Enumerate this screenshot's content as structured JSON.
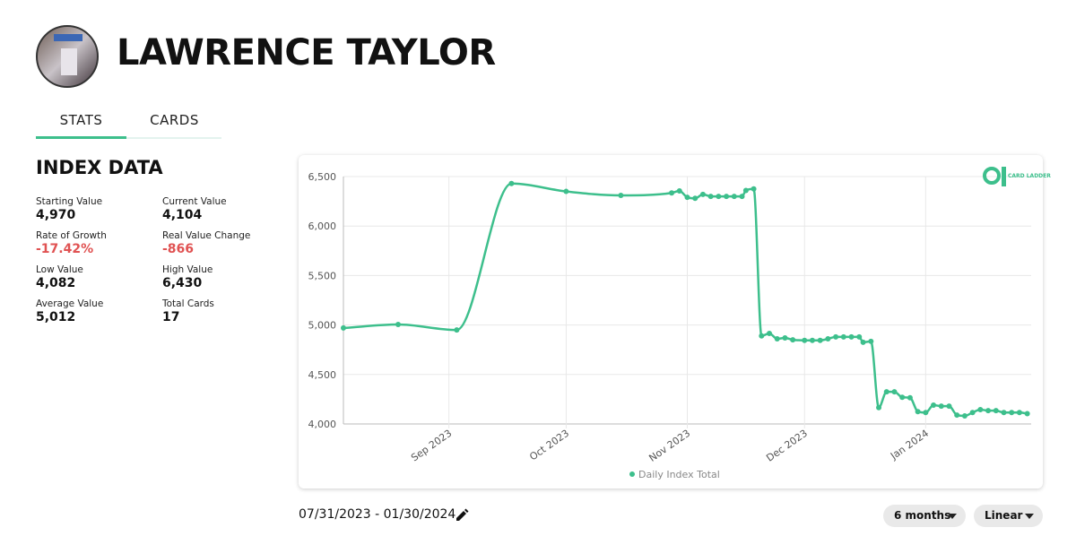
{
  "header": {
    "title": "LAWRENCE TAYLOR"
  },
  "tabs": [
    "STATS",
    "CARDS"
  ],
  "index_data": {
    "title": "INDEX DATA",
    "stats": [
      {
        "label": "Starting Value",
        "value": "4,970"
      },
      {
        "label": "Current Value",
        "value": "4,104"
      },
      {
        "label": "Rate of Growth",
        "value": "-17.42%",
        "color": "#e05252"
      },
      {
        "label": "Real Value Change",
        "value": "-866",
        "color": "#e05252"
      },
      {
        "label": "Low Value",
        "value": "4,082"
      },
      {
        "label": "High Value",
        "value": "6,430"
      },
      {
        "label": "Average Value",
        "value": "5,012"
      },
      {
        "label": "Total Cards",
        "value": "17"
      }
    ]
  },
  "chart_data": {
    "type": "line",
    "logo": "CARD LADDER",
    "legend": "bottom",
    "grid": true,
    "x": [
      "2023-08-05",
      "2023-08-19",
      "2023-09-03",
      "2023-09-17",
      "2023-10-01",
      "2023-10-15",
      "2023-10-28",
      "2023-10-30",
      "2023-11-01",
      "2023-11-03",
      "2023-11-05",
      "2023-11-07",
      "2023-11-09",
      "2023-11-11",
      "2023-11-13",
      "2023-11-15",
      "2023-11-16",
      "2023-11-18",
      "2023-11-20",
      "2023-11-22",
      "2023-11-24",
      "2023-11-26",
      "2023-11-28",
      "2023-12-01",
      "2023-12-03",
      "2023-12-05",
      "2023-12-07",
      "2023-12-09",
      "2023-12-11",
      "2023-12-13",
      "2023-12-15",
      "2023-12-16",
      "2023-12-18",
      "2023-12-20",
      "2023-12-22",
      "2023-12-24",
      "2023-12-26",
      "2023-12-28",
      "2023-12-30",
      "2024-01-01",
      "2024-01-03",
      "2024-01-05",
      "2024-01-07",
      "2024-01-09",
      "2024-01-11",
      "2024-01-13",
      "2024-01-15",
      "2024-01-17",
      "2024-01-19",
      "2024-01-21",
      "2024-01-23",
      "2024-01-25",
      "2024-01-27"
    ],
    "series": [
      {
        "name": "Daily Index Total",
        "color": "#3dbf8c",
        "values": [
          4970,
          5005,
          4950,
          6430,
          6350,
          6310,
          6335,
          6355,
          6290,
          6280,
          6320,
          6300,
          6300,
          6300,
          6300,
          6300,
          6360,
          6375,
          4890,
          4915,
          4860,
          4870,
          4850,
          4845,
          4845,
          4845,
          4860,
          4880,
          4880,
          4880,
          4880,
          4825,
          4835,
          4165,
          4325,
          4325,
          4270,
          4265,
          4125,
          4115,
          4190,
          4180,
          4180,
          4090,
          4082,
          4115,
          4145,
          4135,
          4135,
          4115,
          4115,
          4115,
          4104
        ]
      }
    ],
    "xlim": [
      "2023-08-05",
      "2024-01-28"
    ],
    "xticks": [
      {
        "value": "2023-09-01",
        "label": "Sep 2023"
      },
      {
        "value": "2023-10-01",
        "label": "Oct 2023"
      },
      {
        "value": "2023-11-01",
        "label": "Nov 2023"
      },
      {
        "value": "2023-12-01",
        "label": "Dec 2023"
      },
      {
        "value": "2024-01-01",
        "label": "Jan 2024"
      }
    ],
    "ylim": [
      4000,
      6500
    ],
    "yticks": [
      {
        "value": 4000,
        "label": "4,000"
      },
      {
        "value": 4500,
        "label": "4,500"
      },
      {
        "value": 5000,
        "label": "5,000"
      },
      {
        "value": 5500,
        "label": "5,500"
      },
      {
        "value": 6000,
        "label": "6,000"
      },
      {
        "value": 6500,
        "label": "6,500"
      }
    ]
  },
  "controls": {
    "date_range": "07/31/2023 - 01/30/2024",
    "period": "6 months",
    "scale": "Linear"
  }
}
